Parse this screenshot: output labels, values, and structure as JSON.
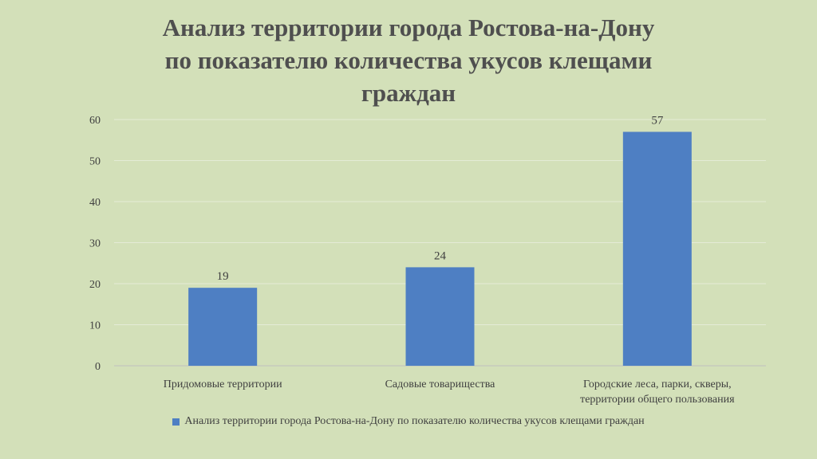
{
  "chart_data": {
    "type": "bar",
    "title_lines": [
      "Анализ территории города Ростова-на-Дону",
      "по показателю количества укусов клещами",
      "граждан"
    ],
    "categories": [
      [
        "Придомовые территории"
      ],
      [
        "Садовые товарищества"
      ],
      [
        "Городские леса, парки, скверы,",
        "территории общего пользования"
      ]
    ],
    "series": [
      {
        "name": "Анализ территории города Ростова-на-Дону по показателю количества укусов клещами граждан",
        "values": [
          19,
          24,
          57
        ],
        "color": "#4e7fc3"
      }
    ],
    "ylim": [
      0,
      60
    ],
    "yticks": [
      "0",
      "10",
      "20",
      "30",
      "40",
      "50",
      "60"
    ],
    "grid": true,
    "legend_position": "bottom"
  }
}
